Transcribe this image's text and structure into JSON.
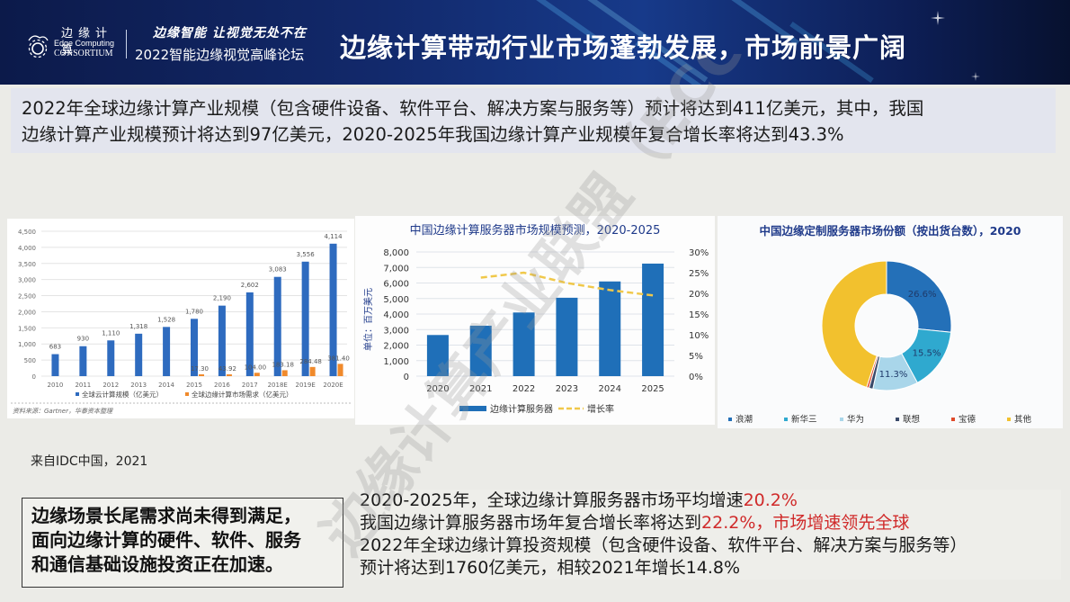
{
  "header": {
    "logo_cn": "边缘计算",
    "logo_en_line1": "Edge Computing",
    "logo_en_line2": "CONSORTIUM",
    "slogan_line1": "边缘智能 让视觉无处不在",
    "slogan_line2": "2022智能边缘视觉高峰论坛",
    "title": "边缘计算带动行业市场蓬勃发展，市场前景广阔"
  },
  "intro": {
    "line1": "2022年全球边缘计算产业规模（包含硬件设备、软件平台、解决方案与服务等）预计将达到411亿美元，其中，我国",
    "line2": "边缘计算产业规模预计将达到97亿美元，2020-2025年我国边缘计算产业规模年复合增长率将达到43.3%"
  },
  "source_note": "来自IDC中国，2021",
  "callout": {
    "line1": "边缘场景长尾需求尚未得到满足，",
    "line2": "面向边缘计算的硬件、软件、服务",
    "line3": "和通信基础设施投资正在加速。"
  },
  "bottom": {
    "line1_prefix": "2020-2025年，全球边缘计算服务器市场平均增速",
    "line1_highlight": "20.2%",
    "line2_prefix": "我国边缘计算服务器市场年复合增长率将达到",
    "line2_highlight": "22.2%，市场增速领先全球",
    "line3": "2022年全球边缘计算投资规模（包含硬件设备、软件平台、解决方案与服务等）",
    "line4": "预计将达到1760亿美元，相较2021年增长14.8%"
  },
  "watermark": {
    "text": "边缘计算产业联盟（ECC）",
    "bottom_badge": "边缘计算产业联盟ECC"
  },
  "colors": {
    "header_bg": "#12296b",
    "bar_blue": "#2e6bbf",
    "server_blue": "#1f6fb8",
    "orange": "#f08a2c",
    "growth_yellow": "#f0c84a",
    "highlight_red": "#d02a2a",
    "pie_title": "#1f3a8a"
  },
  "chart_data": [
    {
      "type": "bar",
      "title": "",
      "categories": [
        "2010",
        "2011",
        "2012",
        "2013",
        "2014",
        "2015",
        "2016",
        "2017",
        "2018E",
        "2019E",
        "2020E"
      ],
      "series": [
        {
          "name": "全球云计算规模（亿美元）",
          "values": [
            683,
            930,
            1110,
            1318,
            1528,
            1780,
            2190,
            2602,
            3083,
            3556,
            4114
          ]
        },
        {
          "name": "全球边缘计算市场需求（亿美元）",
          "values": [
            null,
            null,
            null,
            null,
            null,
            17.3,
            43.92,
            104.0,
            183.18,
            284.48,
            381.4
          ]
        }
      ],
      "value_labels_blue": [
        "683",
        "930",
        "1,110",
        "1,318",
        "1,528",
        "1,780",
        "2,190",
        "2,602",
        "3,083",
        "3,556",
        "4,114"
      ],
      "value_labels_orange": [
        "",
        "",
        "",
        "",
        "",
        "17.30",
        "43.92",
        "104.00",
        "183.18",
        "284.48",
        "381.40"
      ],
      "yticks": [
        "0",
        "500",
        "1,000",
        "1,500",
        "2,000",
        "2,500",
        "3,000",
        "3,500",
        "4,000",
        "4,500"
      ],
      "ylim": [
        0,
        4500
      ],
      "grid": true,
      "legend_position": "bottom",
      "footnote": "资料来源：Gartner，华泰资本整理"
    },
    {
      "type": "bar+line",
      "title": "中国边缘计算服务器市场规模预测，2020-2025",
      "categories": [
        "2020",
        "2021",
        "2022",
        "2023",
        "2024",
        "2025"
      ],
      "series": [
        {
          "name": "边缘计算服务器",
          "type": "bar",
          "axis": "left",
          "values": [
            2650,
            3250,
            4100,
            5050,
            6100,
            7250
          ]
        },
        {
          "name": "增长率",
          "type": "line",
          "axis": "right",
          "values": [
            null,
            0.238,
            0.25,
            0.225,
            0.208,
            0.195
          ]
        }
      ],
      "ylabel": "单位：百万美元",
      "yticks_left": [
        "0",
        "1,000",
        "2,000",
        "3,000",
        "4,000",
        "5,000",
        "6,000",
        "7,000",
        "8,000"
      ],
      "yticks_right": [
        "0%",
        "5%",
        "10%",
        "15%",
        "20%",
        "25%",
        "30%"
      ],
      "ylim_left": [
        0,
        8000
      ],
      "ylim_right": [
        0,
        0.3
      ],
      "grid": true,
      "legend_position": "bottom"
    },
    {
      "type": "pie",
      "title": "中国边缘定制服务器市场份额（按出货台数），2020",
      "categories": [
        "浪潮",
        "新华三",
        "华为",
        "联想",
        "宝德",
        "其他"
      ],
      "values": [
        26.6,
        15.5,
        11.3,
        1.0,
        0.6,
        45.0
      ],
      "value_labels": [
        "26.6%",
        "15.5%",
        "11.3%",
        "",
        "",
        ""
      ],
      "colors": [
        "#2470b8",
        "#2fa9cf",
        "#a9d6ea",
        "#3a4a6a",
        "#e04a2a",
        "#f2c12e"
      ],
      "donut": true,
      "legend_position": "bottom"
    }
  ]
}
